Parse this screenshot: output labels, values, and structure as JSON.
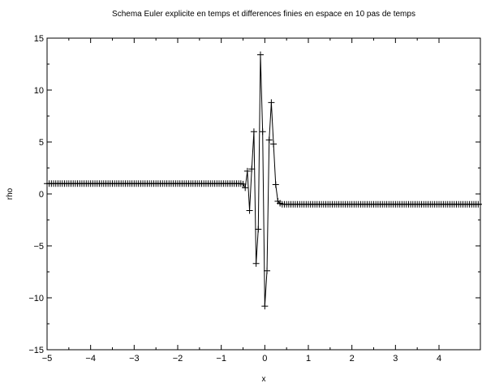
{
  "chart_data": {
    "type": "line",
    "title": "Schema Euler explicite en temps et differences finies en espace en 10 pas de temps",
    "xlabel": "x",
    "ylabel": "rho",
    "xlim": [
      -5,
      4.95
    ],
    "ylim": [
      -15,
      15
    ],
    "x_ticks": [
      -5,
      -4,
      -3,
      -2,
      -1,
      0,
      1,
      2,
      3,
      4
    ],
    "y_ticks": [
      -15,
      -10,
      -5,
      0,
      5,
      10,
      15
    ],
    "x_tick_labels": [
      "−5",
      "−4",
      "−3",
      "−2",
      "−1",
      "0",
      "1",
      "2",
      "3",
      "4"
    ],
    "y_tick_labels": [
      "−15",
      "−10",
      "−5",
      "0",
      "5",
      "10",
      "15"
    ],
    "grid": false,
    "legend": "none",
    "marker": "+",
    "line_color": "#000000",
    "series": [
      {
        "x_start": -5,
        "x_step": 0.05,
        "values": [
          1,
          1,
          1,
          1,
          1,
          1,
          1,
          1,
          1,
          1,
          1,
          1,
          1,
          1,
          1,
          1,
          1,
          1,
          1,
          1,
          1,
          1,
          1,
          1,
          1,
          1,
          1,
          1,
          1,
          1,
          1,
          1,
          1,
          1,
          1,
          1,
          1,
          1,
          1,
          1,
          1,
          1,
          1,
          1,
          1,
          1,
          1,
          1,
          1,
          1,
          1,
          1,
          1,
          1,
          1,
          1,
          1,
          1,
          1,
          1,
          1,
          1,
          1,
          1,
          1,
          1,
          1,
          1,
          1,
          1,
          1,
          1,
          1,
          1,
          1,
          1,
          1,
          1,
          1,
          1,
          1,
          1,
          1,
          1,
          1,
          1,
          1,
          1,
          1,
          1,
          0.95,
          0.6,
          2.2,
          -1.6,
          2.4,
          6.0,
          -6.7,
          -3.4,
          13.4,
          6.0,
          -10.8,
          -7.4,
          5.2,
          8.8,
          4.8,
          0.9,
          -0.7,
          -0.9,
          -1.0,
          -1,
          -1,
          -1,
          -1,
          -1,
          -1,
          -1,
          -1,
          -1,
          -1,
          -1,
          -1,
          -1,
          -1,
          -1,
          -1,
          -1,
          -1,
          -1,
          -1,
          -1,
          -1,
          -1,
          -1,
          -1,
          -1,
          -1,
          -1,
          -1,
          -1,
          -1,
          -1,
          -1,
          -1,
          -1,
          -1,
          -1,
          -1,
          -1,
          -1,
          -1,
          -1,
          -1,
          -1,
          -1,
          -1,
          -1,
          -1,
          -1,
          -1,
          -1,
          -1,
          -1,
          -1,
          -1,
          -1,
          -1,
          -1,
          -1,
          -1,
          -1,
          -1,
          -1,
          -1,
          -1,
          -1,
          -1,
          -1,
          -1,
          -1,
          -1,
          -1,
          -1,
          -1,
          -1,
          -1,
          -1,
          -1,
          -1,
          -1,
          -1,
          -1,
          -1,
          -1,
          -1,
          -1,
          -1,
          -1,
          -1,
          -1,
          -1
        ]
      }
    ]
  }
}
